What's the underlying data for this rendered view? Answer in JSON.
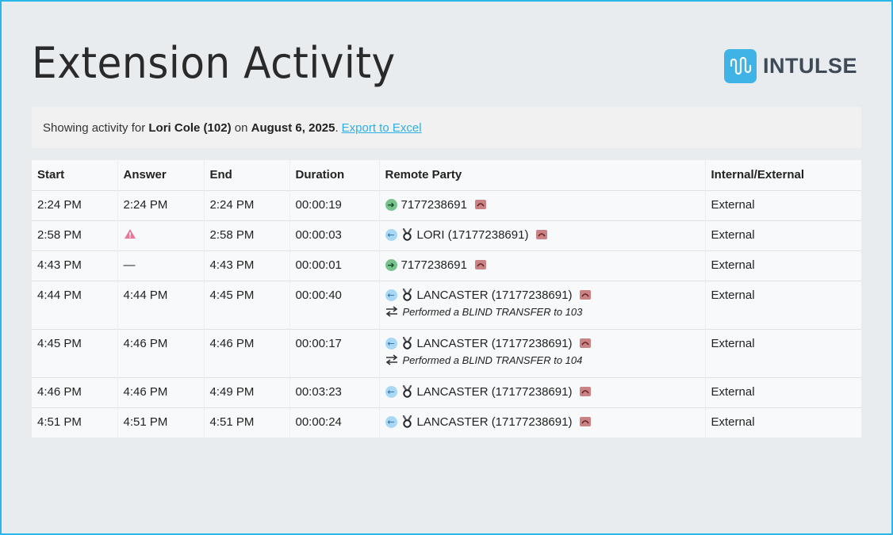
{
  "page": {
    "title": "Extension Activity"
  },
  "logo": {
    "text": "INTULSE",
    "accent": "#3fb3e6"
  },
  "info": {
    "prefix": "Showing activity for ",
    "user": "Lori Cole (102)",
    "middle": " on ",
    "date": "August 6, 2025",
    "suffix": ".",
    "export_link": "Export to Excel"
  },
  "table": {
    "headers": [
      "Start",
      "Answer",
      "End",
      "Duration",
      "Remote Party",
      "Internal/External"
    ],
    "rows": [
      {
        "start": "2:24 PM",
        "answer": "2:24 PM",
        "end": "2:24 PM",
        "duration": "00:00:19",
        "direction_icon": "outbound-arrow-icon",
        "party": "7177238691",
        "note": "",
        "type": "External"
      },
      {
        "start": "2:58 PM",
        "answer": "",
        "answer_icon": "warning-icon",
        "end": "2:58 PM",
        "duration": "00:00:03",
        "direction_icon": "inbound-arrow-icon",
        "party": "LORI (17177238691)",
        "note": "",
        "type": "External"
      },
      {
        "start": "4:43 PM",
        "answer": "—",
        "end": "4:43 PM",
        "duration": "00:00:01",
        "direction_icon": "outbound-arrow-icon",
        "party": "7177238691",
        "note": "",
        "type": "External"
      },
      {
        "start": "4:44 PM",
        "answer": "4:44 PM",
        "end": "4:45 PM",
        "duration": "00:00:40",
        "direction_icon": "inbound-arrow-icon",
        "party": "LANCASTER (17177238691)",
        "note": "Performed a BLIND TRANSFER to 103",
        "type": "External"
      },
      {
        "start": "4:45 PM",
        "answer": "4:46 PM",
        "end": "4:46 PM",
        "duration": "00:00:17",
        "direction_icon": "inbound-arrow-icon",
        "party": "LANCASTER (17177238691)",
        "note": "Performed a BLIND TRANSFER to 104",
        "type": "External"
      },
      {
        "start": "4:46 PM",
        "answer": "4:46 PM",
        "end": "4:49 PM",
        "duration": "00:03:23",
        "direction_icon": "inbound-arrow-icon",
        "party": "LANCASTER (17177238691)",
        "note": "",
        "type": "External"
      },
      {
        "start": "4:51 PM",
        "answer": "4:51 PM",
        "end": "4:51 PM",
        "duration": "00:00:24",
        "direction_icon": "inbound-arrow-icon",
        "party": "LANCASTER (17177238691)",
        "note": "",
        "type": "External"
      }
    ]
  }
}
